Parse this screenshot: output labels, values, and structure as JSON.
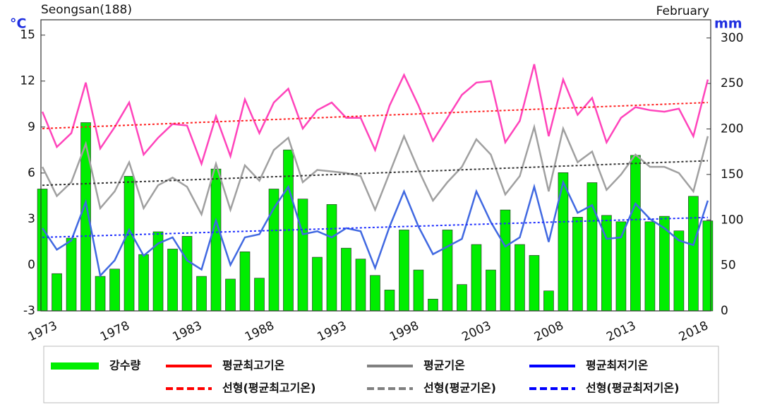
{
  "chart_data": {
    "type": "bar_line",
    "title": "Seongsan(188)",
    "subtitle": "February",
    "y_label": "°C",
    "y2_label": "mm",
    "x": [
      1973,
      1974,
      1975,
      1976,
      1977,
      1978,
      1979,
      1980,
      1981,
      1982,
      1983,
      1984,
      1985,
      1986,
      1987,
      1988,
      1989,
      1990,
      1991,
      1992,
      1993,
      1994,
      1995,
      1996,
      1997,
      1998,
      1999,
      2000,
      2001,
      2002,
      2003,
      2004,
      2005,
      2006,
      2007,
      2008,
      2009,
      2010,
      2011,
      2012,
      2013,
      2014,
      2015,
      2016,
      2017,
      2018,
      2019
    ],
    "xlim": [
      1972.9,
      2019.2
    ],
    "xticks": [
      1973,
      1978,
      1983,
      1988,
      1993,
      1998,
      2003,
      2008,
      2013,
      2018
    ],
    "ylim": [
      -3,
      16
    ],
    "yticks": [
      -3,
      0,
      3,
      6,
      9,
      12,
      15
    ],
    "y2lim": [
      0,
      320
    ],
    "y2ticks": [
      0,
      50,
      100,
      150,
      200,
      250,
      300
    ],
    "series": [
      {
        "name": "강수량",
        "type": "bar",
        "axis": "y2",
        "color": "#00ee00",
        "values": [
          134,
          41,
          80,
          207,
          38,
          46,
          148,
          62,
          87,
          68,
          82,
          38,
          156,
          35,
          65,
          36,
          134,
          177,
          123,
          59,
          117,
          69,
          57,
          39,
          23,
          89,
          45,
          13,
          89,
          29,
          73,
          45,
          111,
          73,
          61,
          22,
          152,
          103,
          141,
          105,
          98,
          171,
          98,
          104,
          88,
          126,
          99
        ]
      },
      {
        "name": "평균최고기온",
        "type": "line",
        "color": "#ff44bb",
        "legend_color": "#ff0000",
        "values": [
          10.0,
          7.7,
          8.6,
          11.9,
          7.6,
          9.0,
          10.6,
          7.2,
          8.3,
          9.2,
          9.1,
          6.6,
          9.7,
          7.1,
          10.8,
          8.6,
          10.6,
          11.5,
          8.9,
          10.1,
          10.6,
          9.6,
          9.6,
          7.5,
          10.4,
          12.4,
          10.4,
          8.1,
          9.6,
          11.1,
          11.9,
          12.0,
          8.0,
          9.4,
          13.1,
          8.4,
          12.1,
          9.8,
          10.9,
          8.0,
          9.6,
          10.3,
          10.1,
          10.0,
          10.2,
          8.4,
          12.1
        ]
      },
      {
        "name": "평균기온",
        "type": "line",
        "color": "#a0a0a0",
        "legend_color": "#808080",
        "values": [
          6.4,
          4.5,
          5.4,
          7.9,
          3.7,
          4.8,
          6.7,
          3.7,
          5.2,
          5.7,
          5.1,
          3.3,
          6.6,
          3.6,
          6.5,
          5.5,
          7.5,
          8.3,
          5.4,
          6.2,
          6.1,
          6.0,
          5.8,
          3.6,
          6.0,
          8.4,
          6.2,
          4.2,
          5.4,
          6.4,
          8.2,
          7.2,
          4.6,
          5.8,
          9.0,
          4.8,
          8.9,
          6.7,
          7.4,
          4.9,
          5.9,
          7.2,
          6.4,
          6.4,
          6.0,
          4.8,
          8.4
        ]
      },
      {
        "name": "평균최저기온",
        "type": "line",
        "color": "#4169e1",
        "legend_color": "#0000ff",
        "values": [
          2.4,
          1.0,
          1.6,
          4.1,
          -0.7,
          0.3,
          2.3,
          0.6,
          1.4,
          1.8,
          0.3,
          -0.3,
          2.9,
          0.0,
          1.8,
          2.0,
          3.7,
          5.1,
          2.0,
          2.2,
          1.8,
          2.4,
          2.2,
          -0.2,
          2.5,
          4.8,
          2.5,
          0.7,
          1.2,
          1.7,
          4.8,
          2.8,
          1.2,
          1.8,
          5.1,
          1.5,
          5.4,
          3.4,
          3.9,
          1.7,
          1.8,
          4.0,
          3.0,
          2.4,
          1.6,
          1.3,
          4.2
        ]
      },
      {
        "name": "선형(평균최고기온)",
        "type": "trend",
        "color": "#ff2020",
        "legend_color": "#ff0000",
        "x": [
          1973,
          2019
        ],
        "values": [
          8.9,
          10.6
        ]
      },
      {
        "name": "선형(평균기온)",
        "type": "trend",
        "color": "#333333",
        "legend_color": "#808080",
        "x": [
          1973,
          2019
        ],
        "values": [
          5.2,
          6.8
        ]
      },
      {
        "name": "선형(평균최저기온)",
        "type": "trend",
        "color": "#2030ff",
        "legend_color": "#0000ff",
        "x": [
          1973,
          2019
        ],
        "values": [
          1.8,
          3.1
        ]
      }
    ]
  }
}
